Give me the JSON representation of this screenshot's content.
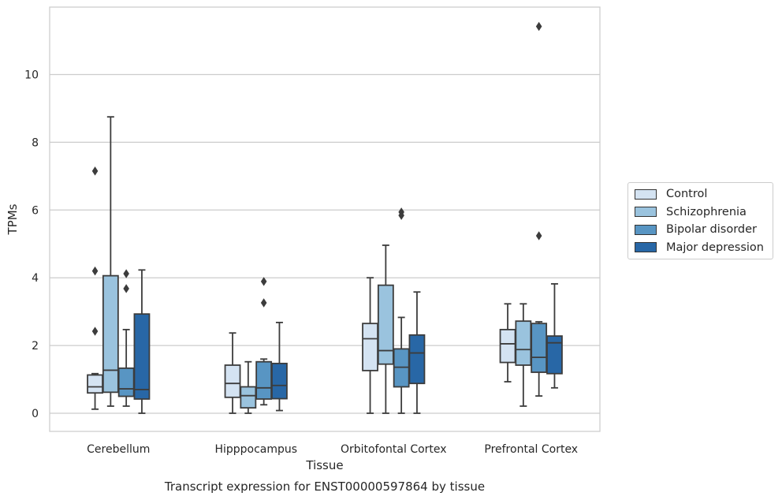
{
  "chart_data": {
    "type": "box",
    "title": "Transcript expression for ENST00000597864 by tissue",
    "xlabel": "Tissue",
    "ylabel": "TPMs",
    "ylim": [
      -0.55,
      12.0
    ],
    "yticks": [
      0,
      2,
      4,
      6,
      8,
      10
    ],
    "categories": [
      "Cerebellum",
      "Hipppocampus",
      "Orbitofontal Cortex",
      "Prefrontal Cortex"
    ],
    "grid": "horizontal",
    "legend_position": "right",
    "series": [
      {
        "name": "Control",
        "color": "#d4e3f2",
        "boxes": [
          {
            "whislo": 0.12,
            "q1": 0.6,
            "med": 0.78,
            "q3": 1.13,
            "whishi": 1.17,
            "fliers": [
              7.15,
              4.2,
              2.42
            ]
          },
          {
            "whislo": 0.0,
            "q1": 0.47,
            "med": 0.88,
            "q3": 1.42,
            "whishi": 2.37,
            "fliers": []
          },
          {
            "whislo": 0.0,
            "q1": 1.26,
            "med": 2.2,
            "q3": 2.65,
            "whishi": 4.0,
            "fliers": []
          },
          {
            "whislo": 0.93,
            "q1": 1.5,
            "med": 2.05,
            "q3": 2.47,
            "whishi": 3.23,
            "fliers": []
          }
        ]
      },
      {
        "name": "Schizophrenia",
        "color": "#9ac3de",
        "boxes": [
          {
            "whislo": 0.21,
            "q1": 0.62,
            "med": 1.27,
            "q3": 4.06,
            "whishi": 8.75,
            "fliers": []
          },
          {
            "whislo": 0.0,
            "q1": 0.16,
            "med": 0.52,
            "q3": 0.78,
            "whishi": 1.52,
            "fliers": []
          },
          {
            "whislo": 0.0,
            "q1": 1.45,
            "med": 1.85,
            "q3": 3.78,
            "whishi": 4.96,
            "fliers": []
          },
          {
            "whislo": 0.21,
            "q1": 1.42,
            "med": 1.88,
            "q3": 2.72,
            "whishi": 3.23,
            "fliers": []
          }
        ]
      },
      {
        "name": "Bipolar disorder",
        "color": "#5895c3",
        "boxes": [
          {
            "whislo": 0.21,
            "q1": 0.5,
            "med": 0.72,
            "q3": 1.33,
            "whishi": 2.47,
            "fliers": [
              4.12,
              3.68
            ]
          },
          {
            "whislo": 0.25,
            "q1": 0.42,
            "med": 0.75,
            "q3": 1.52,
            "whishi": 1.6,
            "fliers": [
              3.89,
              3.26
            ]
          },
          {
            "whislo": 0.0,
            "q1": 0.78,
            "med": 1.36,
            "q3": 1.9,
            "whishi": 2.83,
            "fliers": [
              5.94,
              5.84
            ]
          },
          {
            "whislo": 0.51,
            "q1": 1.21,
            "med": 1.65,
            "q3": 2.65,
            "whishi": 2.7,
            "fliers": [
              11.42,
              5.24
            ]
          }
        ]
      },
      {
        "name": "Major depression",
        "color": "#2867a6",
        "boxes": [
          {
            "whislo": 0.0,
            "q1": 0.42,
            "med": 0.7,
            "q3": 2.93,
            "whishi": 4.23,
            "fliers": []
          },
          {
            "whislo": 0.08,
            "q1": 0.43,
            "med": 0.82,
            "q3": 1.47,
            "whishi": 2.68,
            "fliers": []
          },
          {
            "whislo": 0.0,
            "q1": 0.88,
            "med": 1.78,
            "q3": 2.31,
            "whishi": 3.58,
            "fliers": []
          },
          {
            "whislo": 0.75,
            "q1": 1.17,
            "med": 2.08,
            "q3": 2.28,
            "whishi": 3.82,
            "fliers": []
          }
        ]
      }
    ]
  }
}
